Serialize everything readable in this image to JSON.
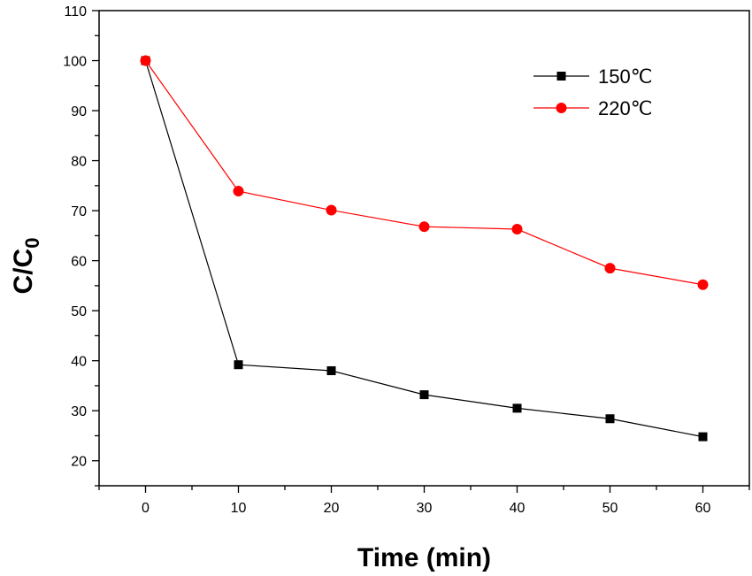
{
  "chart_data": {
    "type": "line",
    "title": "",
    "xlabel": "Time (min)",
    "ylabel_main": "C/C",
    "ylabel_sub": "0",
    "xlim": [
      -5,
      65
    ],
    "ylim": [
      15,
      110
    ],
    "x_ticks": [
      0,
      10,
      20,
      30,
      40,
      50,
      60
    ],
    "x_tick_labels": [
      "0",
      "10",
      "20",
      "30",
      "40",
      "50",
      "60"
    ],
    "y_ticks": [
      20,
      30,
      40,
      50,
      60,
      70,
      80,
      90,
      100,
      110
    ],
    "y_tick_labels": [
      "20",
      "30",
      "40",
      "50",
      "60",
      "70",
      "80",
      "90",
      "100",
      "110"
    ],
    "grid": false,
    "legend_position": "top-right",
    "x": [
      0,
      10,
      20,
      30,
      40,
      50,
      60
    ],
    "series": [
      {
        "name": "150℃",
        "values": [
          100,
          39.2,
          38.0,
          33.2,
          30.5,
          28.4,
          24.8
        ],
        "color": "#000000",
        "marker": "square"
      },
      {
        "name": "220℃",
        "values": [
          100,
          73.9,
          70.1,
          66.8,
          66.3,
          58.5,
          55.2
        ],
        "color": "#ff0000",
        "marker": "circle"
      }
    ]
  }
}
